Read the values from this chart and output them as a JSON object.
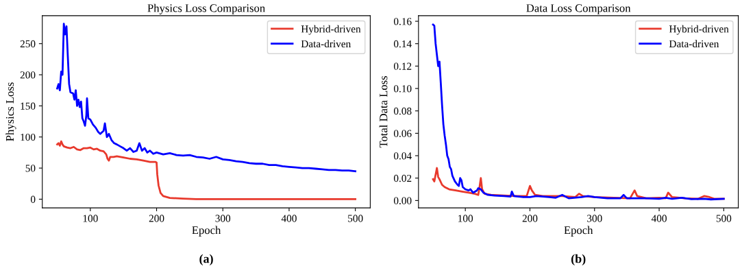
{
  "chart_data": [
    {
      "type": "line",
      "title": "Physics Loss Comparison",
      "xlabel": "Epoch",
      "ylabel": "Physics Loss",
      "annotations": [
        "(a)"
      ],
      "xlim": [
        27.5,
        522.5
      ],
      "ylim": [
        -14,
        295
      ],
      "xticks": [
        100,
        200,
        300,
        400,
        500
      ],
      "yticks": [
        0,
        50,
        100,
        150,
        200,
        250
      ],
      "legend": "top right",
      "grid": false,
      "series": [
        {
          "name": "Hybrid-driven",
          "color": "#e8392c",
          "x": [
            50,
            52,
            54,
            56,
            58,
            60,
            65,
            70,
            75,
            80,
            85,
            90,
            95,
            100,
            105,
            110,
            115,
            120,
            124,
            126,
            128,
            130,
            135,
            140,
            150,
            160,
            170,
            180,
            190,
            198,
            200,
            201,
            203,
            206,
            210,
            220,
            240,
            260,
            300,
            400,
            500
          ],
          "values": [
            88,
            90,
            86,
            93,
            88,
            85,
            83,
            82,
            84,
            80,
            79,
            82,
            82,
            83,
            80,
            81,
            78,
            77,
            72,
            65,
            62,
            68,
            68,
            69,
            67,
            65,
            64,
            62,
            60,
            60,
            59,
            40,
            22,
            10,
            5,
            2,
            1,
            0,
            0,
            0,
            0
          ]
        },
        {
          "name": "Data-driven",
          "color": "#0000ff",
          "x": [
            50,
            52,
            54,
            56,
            58,
            60,
            62,
            64,
            66,
            68,
            70,
            74,
            76,
            78,
            80,
            82,
            84,
            86,
            88,
            90,
            92,
            94,
            95,
            97,
            100,
            104,
            108,
            112,
            115,
            120,
            122,
            125,
            128,
            132,
            136,
            140,
            145,
            150,
            155,
            160,
            165,
            170,
            174,
            178,
            182,
            186,
            190,
            195,
            200,
            210,
            220,
            230,
            240,
            250,
            260,
            270,
            280,
            290,
            300,
            310,
            320,
            330,
            340,
            350,
            360,
            370,
            380,
            390,
            400,
            410,
            420,
            430,
            440,
            450,
            460,
            470,
            480,
            490,
            500
          ],
          "values": [
            178,
            185,
            175,
            205,
            200,
            282,
            265,
            278,
            230,
            185,
            172,
            170,
            160,
            175,
            150,
            160,
            148,
            157,
            130,
            125,
            118,
            135,
            162,
            130,
            128,
            120,
            115,
            108,
            105,
            110,
            122,
            100,
            105,
            95,
            90,
            88,
            85,
            82,
            78,
            82,
            76,
            78,
            90,
            78,
            82,
            75,
            78,
            73,
            75,
            72,
            74,
            71,
            70,
            71,
            68,
            67,
            65,
            68,
            64,
            63,
            61,
            60,
            58,
            57,
            57,
            55,
            55,
            53,
            52,
            51,
            50,
            50,
            49,
            48,
            47,
            47,
            46,
            46,
            45
          ]
        }
      ]
    },
    {
      "type": "line",
      "title": "Data Loss Comparison",
      "xlabel": "Epoch",
      "ylabel": "Total Data Loss",
      "annotations": [
        "(b)"
      ],
      "xlim": [
        27.5,
        522.5
      ],
      "ylim": [
        -0.0066,
        0.165
      ],
      "xticks": [
        100,
        200,
        300,
        400,
        500
      ],
      "yticks": [
        {
          "value": 0,
          "label": "0.00"
        },
        {
          "value": 0.02,
          "label": "0.02"
        },
        {
          "value": 0.04,
          "label": "0.04"
        },
        {
          "value": 0.06,
          "label": "0.06"
        },
        {
          "value": 0.08,
          "label": "0.08"
        },
        {
          "value": 0.1,
          "label": "0.10"
        },
        {
          "value": 0.12,
          "label": "0.12"
        },
        {
          "value": 0.14,
          "label": "0.14"
        },
        {
          "value": 0.16,
          "label": "0.16"
        }
      ],
      "legend": "top right",
      "grid": false,
      "series": [
        {
          "name": "Hybrid-driven",
          "color": "#e8392c",
          "x": [
            50,
            52,
            54,
            56,
            58,
            60,
            64,
            68,
            75,
            85,
            95,
            105,
            115,
            120,
            122,
            124,
            126,
            130,
            140,
            160,
            180,
            195,
            200,
            203,
            208,
            220,
            235,
            250,
            270,
            276,
            282,
            300,
            330,
            355,
            362,
            366,
            380,
            400,
            410,
            414,
            420,
            440,
            460,
            470,
            478,
            485,
            500
          ],
          "values": [
            0.019,
            0.017,
            0.023,
            0.029,
            0.021,
            0.019,
            0.014,
            0.012,
            0.01,
            0.009,
            0.008,
            0.007,
            0.006,
            0.005,
            0.012,
            0.02,
            0.01,
            0.006,
            0.005,
            0.0045,
            0.004,
            0.004,
            0.013,
            0.009,
            0.005,
            0.004,
            0.004,
            0.004,
            0.003,
            0.006,
            0.004,
            0.003,
            0.0025,
            0.002,
            0.009,
            0.004,
            0.002,
            0.0025,
            0.002,
            0.007,
            0.003,
            0.002,
            0.0015,
            0.004,
            0.003,
            0.0015,
            0.0015
          ]
        },
        {
          "name": "Data-driven",
          "color": "#0000ff",
          "x": [
            50,
            52,
            54,
            56,
            58,
            60,
            62,
            64,
            66,
            68,
            70,
            72,
            74,
            76,
            78,
            80,
            84,
            88,
            90,
            92,
            94,
            96,
            100,
            105,
            108,
            112,
            118,
            120,
            124,
            128,
            135,
            145,
            160,
            170,
            172,
            175,
            190,
            200,
            210,
            230,
            240,
            250,
            260,
            280,
            290,
            300,
            320,
            340,
            345,
            350,
            380,
            400,
            410,
            420,
            435,
            450,
            470,
            480,
            500
          ],
          "values": [
            0.157,
            0.156,
            0.14,
            0.13,
            0.12,
            0.124,
            0.105,
            0.085,
            0.068,
            0.058,
            0.05,
            0.04,
            0.037,
            0.03,
            0.028,
            0.022,
            0.017,
            0.014,
            0.013,
            0.02,
            0.018,
            0.012,
            0.01,
            0.009,
            0.01,
            0.007,
            0.009,
            0.011,
            0.01,
            0.007,
            0.005,
            0.0045,
            0.004,
            0.0035,
            0.008,
            0.004,
            0.003,
            0.003,
            0.004,
            0.003,
            0.0025,
            0.005,
            0.002,
            0.003,
            0.004,
            0.003,
            0.002,
            0.002,
            0.005,
            0.002,
            0.002,
            0.0015,
            0.0025,
            0.0015,
            0.0025,
            0.0012,
            0.0015,
            0.001,
            0.0015
          ]
        }
      ]
    }
  ]
}
